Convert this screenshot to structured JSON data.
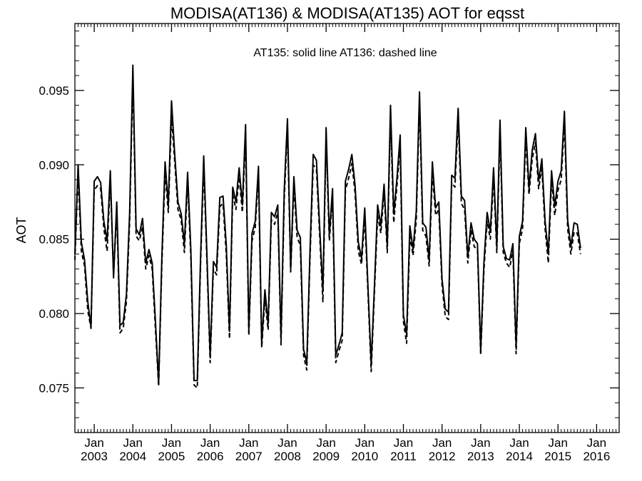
{
  "chart_data": {
    "type": "line",
    "title": "MODISA(AT136) & MODISA(AT135)  AOT for eqsst",
    "annotation": "AT135: solid line   AT136: dashed line",
    "xlabel": "",
    "ylabel": "AOT",
    "x_range": [
      "2002-07",
      "2016-08"
    ],
    "ylim": [
      0.072,
      0.0995
    ],
    "y_ticks": [
      {
        "value": 0.075,
        "label": "0.075"
      },
      {
        "value": 0.08,
        "label": "0.080"
      },
      {
        "value": 0.085,
        "label": "0.085"
      },
      {
        "value": 0.09,
        "label": "0.090"
      },
      {
        "value": 0.095,
        "label": "0.095"
      }
    ],
    "x_ticks": [
      {
        "date": "2003-01",
        "month": "Jan",
        "year": "2003"
      },
      {
        "date": "2004-01",
        "month": "Jan",
        "year": "2004"
      },
      {
        "date": "2005-01",
        "month": "Jan",
        "year": "2005"
      },
      {
        "date": "2006-01",
        "month": "Jan",
        "year": "2006"
      },
      {
        "date": "2007-01",
        "month": "Jan",
        "year": "2007"
      },
      {
        "date": "2008-01",
        "month": "Jan",
        "year": "2008"
      },
      {
        "date": "2009-01",
        "month": "Jan",
        "year": "2009"
      },
      {
        "date": "2010-01",
        "month": "Jan",
        "year": "2010"
      },
      {
        "date": "2011-01",
        "month": "Jan",
        "year": "2011"
      },
      {
        "date": "2012-01",
        "month": "Jan",
        "year": "2012"
      },
      {
        "date": "2013-01",
        "month": "Jan",
        "year": "2013"
      },
      {
        "date": "2014-01",
        "month": "Jan",
        "year": "2014"
      },
      {
        "date": "2015-01",
        "month": "Jan",
        "year": "2015"
      },
      {
        "date": "2016-01",
        "month": "Jan",
        "year": "2016"
      }
    ],
    "grid": false,
    "legend": "none",
    "series": [
      {
        "line_style": "solid",
        "color": "#000000",
        "start": "2002-07",
        "values": [
          0.084,
          0.09,
          0.0848,
          0.0836,
          0.0808,
          0.0791,
          0.0889,
          0.0892,
          0.0888,
          0.0862,
          0.0849,
          0.0896,
          0.0824,
          0.0875,
          0.0792,
          0.0794,
          0.0813,
          0.0868,
          0.0967,
          0.0857,
          0.0853,
          0.0864,
          0.0834,
          0.0843,
          0.0834,
          0.0795,
          0.0753,
          0.0838,
          0.0902,
          0.0873,
          0.0943,
          0.0907,
          0.0875,
          0.0867,
          0.0847,
          0.0895,
          0.0843,
          0.0755,
          0.0755,
          0.0836,
          0.0906,
          0.0839,
          0.0771,
          0.0835,
          0.0831,
          0.0878,
          0.0879,
          0.0846,
          0.0788,
          0.0885,
          0.0875,
          0.0898,
          0.0873,
          0.0927,
          0.0789,
          0.0854,
          0.0862,
          0.0899,
          0.078,
          0.0816,
          0.0793,
          0.0868,
          0.0865,
          0.0873,
          0.0784,
          0.0883,
          0.0931,
          0.083,
          0.0892,
          0.0856,
          0.0851,
          0.0776,
          0.0767,
          0.0842,
          0.0907,
          0.0903,
          0.0858,
          0.0815,
          0.0925,
          0.0853,
          0.0884,
          0.0772,
          0.0779,
          0.0787,
          0.0889,
          0.0897,
          0.0907,
          0.0886,
          0.0848,
          0.0837,
          0.0871,
          0.0818,
          0.0766,
          0.0818,
          0.0873,
          0.0859,
          0.0887,
          0.0845,
          0.094,
          0.0867,
          0.0891,
          0.092,
          0.0799,
          0.0786,
          0.0859,
          0.0843,
          0.0869,
          0.0949,
          0.0861,
          0.0858,
          0.0836,
          0.0902,
          0.0871,
          0.0875,
          0.0823,
          0.0803,
          0.0801,
          0.0893,
          0.0891,
          0.0938,
          0.0879,
          0.0876,
          0.0838,
          0.0861,
          0.085,
          0.0847,
          0.0775,
          0.0834,
          0.0868,
          0.0855,
          0.0898,
          0.0845,
          0.093,
          0.0845,
          0.0837,
          0.0836,
          0.0847,
          0.0778,
          0.0852,
          0.0862,
          0.0925,
          0.0884,
          0.091,
          0.0921,
          0.0889,
          0.0904,
          0.0862,
          0.084,
          0.0896,
          0.0872,
          0.0889,
          0.0896,
          0.0936,
          0.0863,
          0.0845,
          0.0861,
          0.086,
          0.0844
        ]
      },
      {
        "line_style": "dashed",
        "color": "#000000",
        "start": "2002-07",
        "values": [
          0.0836,
          0.0895,
          0.0842,
          0.0832,
          0.0802,
          0.079,
          0.0883,
          0.0886,
          0.0884,
          0.0857,
          0.0842,
          0.089,
          0.0827,
          0.0869,
          0.0787,
          0.079,
          0.0808,
          0.0862,
          0.096,
          0.0852,
          0.0849,
          0.0858,
          0.083,
          0.0839,
          0.083,
          0.079,
          0.0751,
          0.0833,
          0.0895,
          0.0868,
          0.0933,
          0.0902,
          0.087,
          0.0863,
          0.0841,
          0.0889,
          0.0838,
          0.0752,
          0.075,
          0.0832,
          0.0899,
          0.0835,
          0.0767,
          0.083,
          0.0826,
          0.0872,
          0.0874,
          0.084,
          0.0783,
          0.088,
          0.087,
          0.0892,
          0.0868,
          0.092,
          0.0785,
          0.0849,
          0.0858,
          0.0893,
          0.0777,
          0.081,
          0.0789,
          0.0863,
          0.086,
          0.0868,
          0.0779,
          0.0877,
          0.0925,
          0.0828,
          0.0886,
          0.0851,
          0.0846,
          0.0772,
          0.0762,
          0.0837,
          0.09,
          0.0897,
          0.0853,
          0.0808,
          0.0918,
          0.0849,
          0.0878,
          0.0767,
          0.0775,
          0.0782,
          0.0883,
          0.0891,
          0.0901,
          0.0881,
          0.0842,
          0.0833,
          0.0865,
          0.0814,
          0.0761,
          0.0814,
          0.0866,
          0.0854,
          0.0882,
          0.0841,
          0.0932,
          0.0861,
          0.0886,
          0.0912,
          0.0795,
          0.078,
          0.0852,
          0.0839,
          0.0863,
          0.0942,
          0.0856,
          0.0852,
          0.0832,
          0.0895,
          0.0866,
          0.087,
          0.0819,
          0.0798,
          0.0796,
          0.0888,
          0.0885,
          0.0931,
          0.0874,
          0.087,
          0.0834,
          0.0856,
          0.0845,
          0.0843,
          0.0772,
          0.0829,
          0.0862,
          0.085,
          0.0892,
          0.0841,
          0.0922,
          0.0841,
          0.0834,
          0.0831,
          0.0842,
          0.0773,
          0.0847,
          0.0857,
          0.0918,
          0.088,
          0.0904,
          0.0915,
          0.0884,
          0.0898,
          0.0857,
          0.0834,
          0.089,
          0.0866,
          0.0883,
          0.089,
          0.0929,
          0.0857,
          0.084,
          0.0855,
          0.0854,
          0.084
        ]
      }
    ]
  }
}
